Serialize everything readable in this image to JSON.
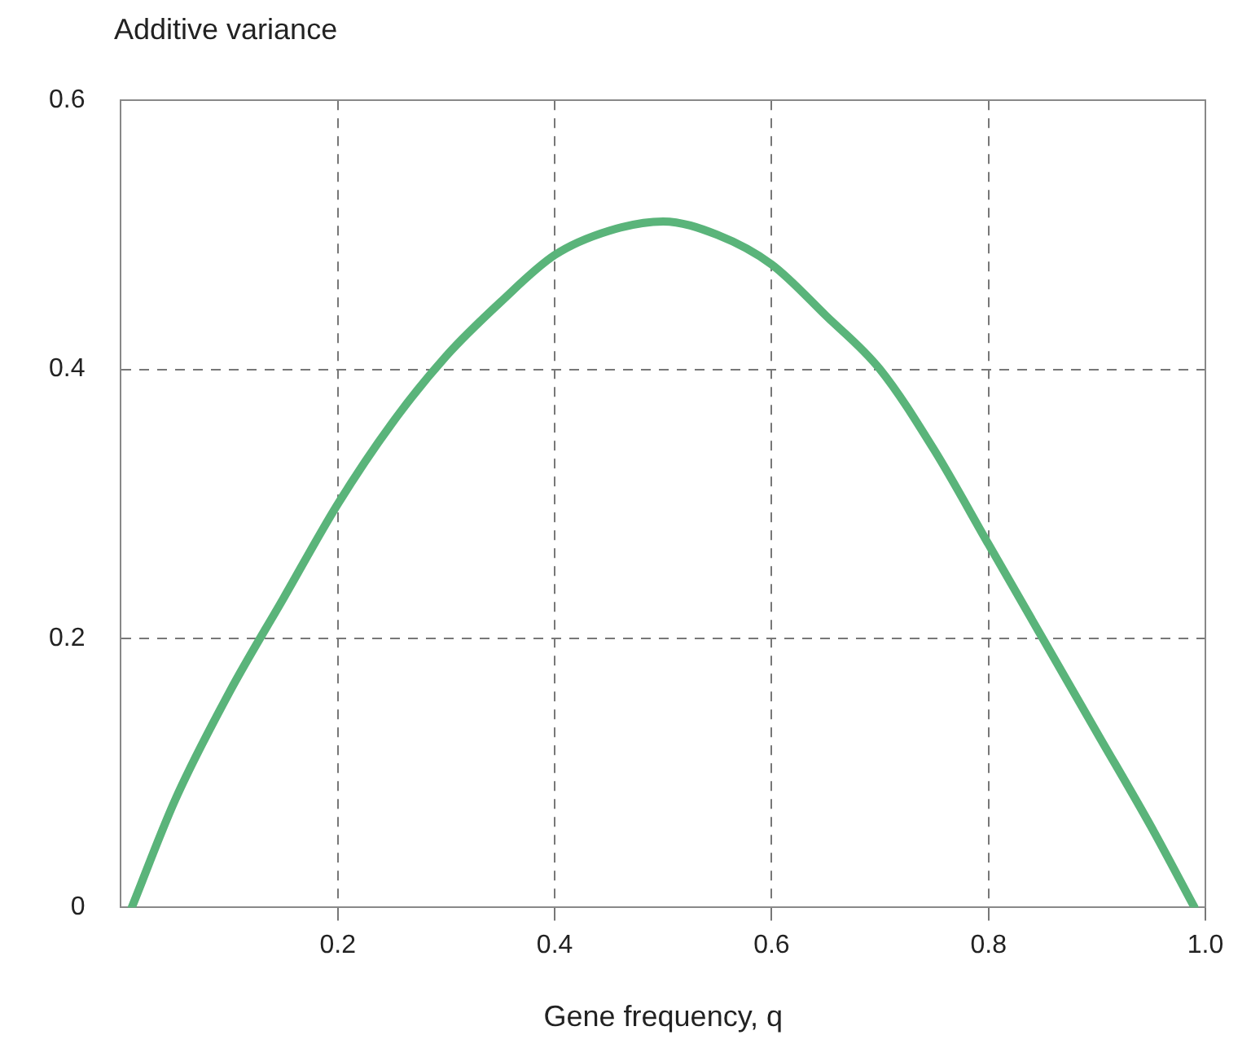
{
  "chart_data": {
    "type": "line",
    "xlabel": "Gene frequency, q",
    "ylabel": "Additive variance",
    "xlim": [
      0,
      1
    ],
    "xticks": [
      0.2,
      0.4,
      0.6,
      0.8,
      {
        "value": 1,
        "label": "1.0"
      }
    ],
    "ylim": [
      0,
      0.6
    ],
    "yticks": [
      0,
      0.2,
      0.4,
      0.6
    ],
    "grid": true,
    "legend": false,
    "marker": "none",
    "line_style": "solid",
    "series": [
      {
        "color": "#5ab47a",
        "x": [
          0.01,
          0.05,
          0.1,
          0.15,
          0.2,
          0.25,
          0.3,
          0.35,
          0.4,
          0.45,
          0.5,
          0.55,
          0.6,
          0.65,
          0.7,
          0.75,
          0.8,
          0.85,
          0.9,
          0.95,
          0.99
        ],
        "values": [
          0,
          0.08,
          0.16,
          0.23,
          0.3,
          0.36,
          0.41,
          0.45,
          0.485,
          0.503,
          0.51,
          0.5,
          0.478,
          0.44,
          0.4,
          0.34,
          0.27,
          0.2,
          0.13,
          0.06,
          0
        ]
      }
    ]
  }
}
